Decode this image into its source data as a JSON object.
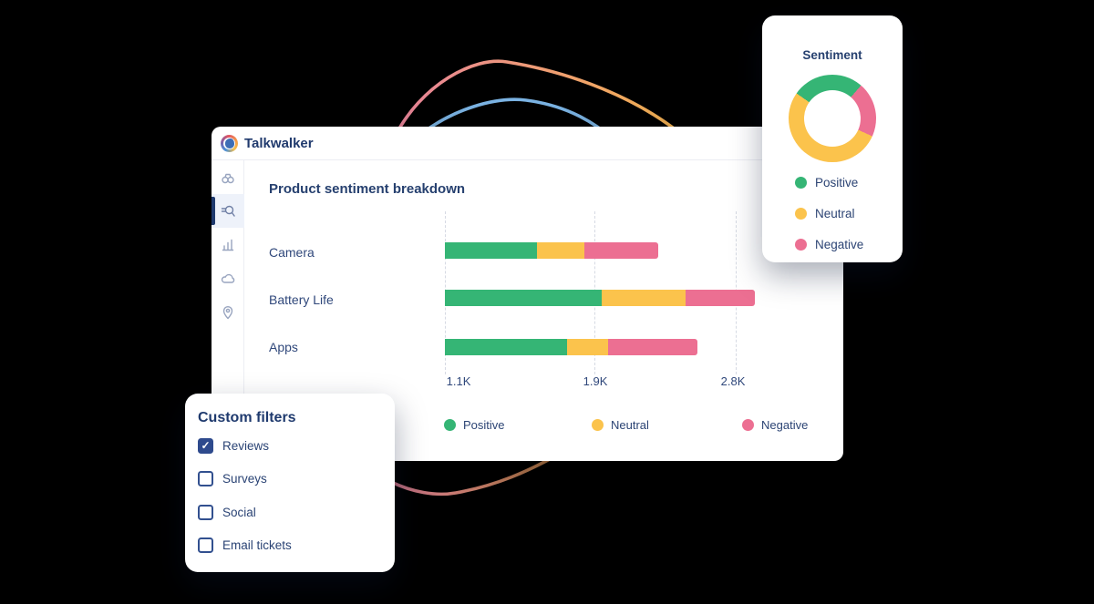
{
  "brand": {
    "name": "Talkwalker"
  },
  "colors": {
    "positive": "#35b575",
    "neutral": "#fbc34c",
    "negative": "#ec6f92",
    "navy_text": "#26406f",
    "checkbox_accent": "#2e4a8d"
  },
  "main_card": {
    "title": "Product sentiment breakdown",
    "sidebar": {
      "items": [
        {
          "icon": "binoculars-icon",
          "active": false
        },
        {
          "icon": "quick-search-icon",
          "active": true
        },
        {
          "icon": "analytics-icon",
          "active": false
        },
        {
          "icon": "cloud-icon",
          "active": false
        },
        {
          "icon": "location-pin-icon",
          "active": false
        }
      ]
    }
  },
  "chart_data": [
    {
      "type": "bar",
      "orientation": "horizontal",
      "stacked": true,
      "title": "Product sentiment breakdown",
      "categories": [
        "Camera",
        "Battery Life",
        "Apps"
      ],
      "series": [
        {
          "name": "Positive",
          "color": "#35b575",
          "values": [
            560,
            950,
            740
          ]
        },
        {
          "name": "Neutral",
          "color": "#fbc34c",
          "values": [
            290,
            510,
            250
          ]
        },
        {
          "name": "Negative",
          "color": "#ec6f92",
          "values": [
            450,
            420,
            540
          ]
        }
      ],
      "x_ticks": [
        "1.1K",
        "1.9K",
        "2.8K"
      ],
      "x_tick_values": [
        1100,
        1900,
        2800
      ],
      "grid": "vertical-dashed",
      "legend": [
        "Positive",
        "Neutral",
        "Negative"
      ],
      "legend_position": "bottom"
    },
    {
      "type": "pie",
      "donut": true,
      "title": "Sentiment",
      "labels": [
        "Positive",
        "Neutral",
        "Negative"
      ],
      "values_pct": [
        27,
        53,
        20
      ],
      "colors": [
        "#35b575",
        "#fbc34c",
        "#ec6f92"
      ],
      "start_deg": 305,
      "draw_order": [
        {
          "label": "Positive",
          "deg": 96
        },
        {
          "label": "Negative",
          "deg": 73
        },
        {
          "label": "Neutral",
          "deg": 191
        }
      ],
      "legend_position": "bottom"
    }
  ],
  "sentiment_card": {
    "title": "Sentiment",
    "legend": [
      {
        "label": "Positive",
        "color": "#35b575"
      },
      {
        "label": "Neutral",
        "color": "#fbc34c"
      },
      {
        "label": "Negative",
        "color": "#ec6f92"
      }
    ]
  },
  "filters_card": {
    "title": "Custom filters",
    "check_glyph": "✓",
    "items": [
      {
        "label": "Reviews",
        "checked": true
      },
      {
        "label": "Surveys",
        "checked": false
      },
      {
        "label": "Social",
        "checked": false
      },
      {
        "label": "Email tickets",
        "checked": false
      }
    ]
  }
}
